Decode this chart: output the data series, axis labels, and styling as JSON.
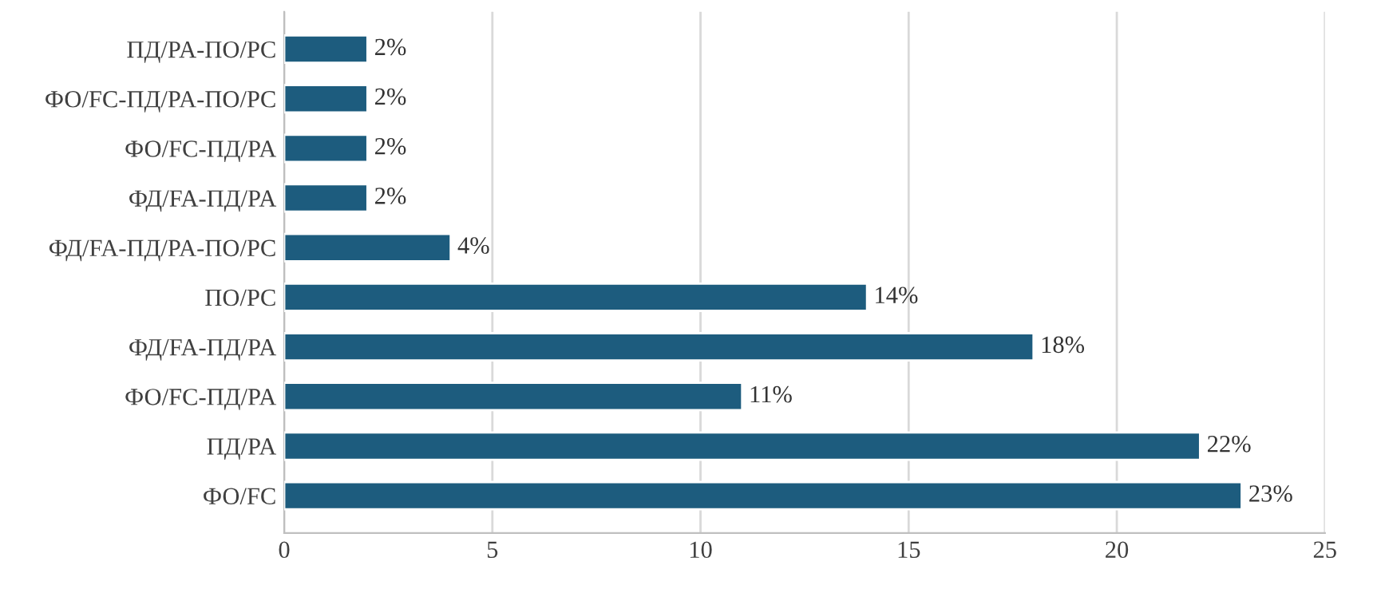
{
  "chart_data": {
    "type": "bar",
    "orientation": "horizontal",
    "categories": [
      "ПД/PA-ПО/PC",
      "ФО/FC-ПД/PA-ПО/PC",
      "ФО/FC-ПД/PA",
      "ФД/FA-ПД/PA",
      "ФД/FA-ПД/PA-ПО/PC",
      "ПО/PC",
      "ФД/FA-ПД/PA",
      "ФО/FC-ПД/PA",
      "ПД/PA",
      "ФО/FC"
    ],
    "values": [
      2,
      2,
      2,
      2,
      4,
      14,
      18,
      11,
      22,
      23
    ],
    "value_labels": [
      "2%",
      "2%",
      "2%",
      "2%",
      "4%",
      "14%",
      "18%",
      "11%",
      "22%",
      "23%"
    ],
    "color": "#1d5c7e",
    "xlim": [
      0,
      25
    ],
    "xticks": [
      0,
      5,
      10,
      15,
      20,
      25
    ],
    "grid": "x"
  }
}
